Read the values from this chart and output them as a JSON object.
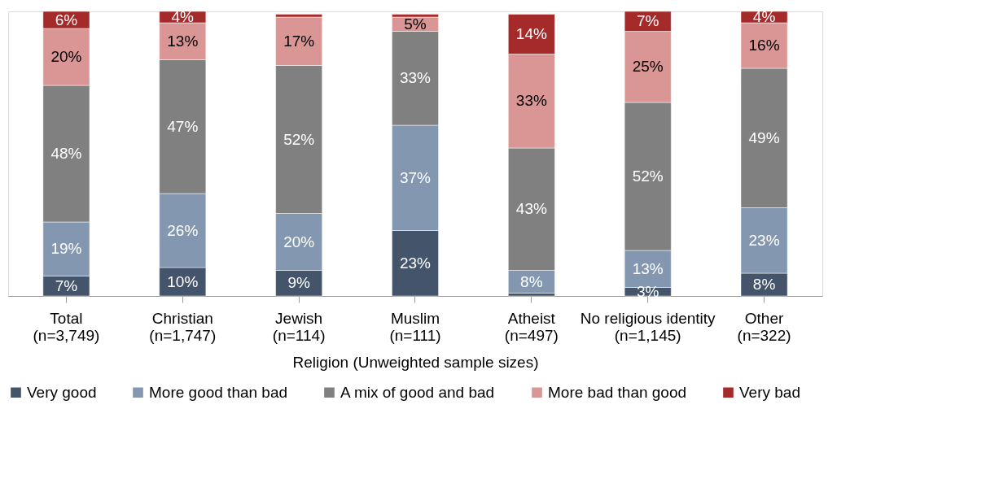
{
  "chart_data": {
    "type": "bar",
    "stacked": true,
    "xlabel": "Religion (Unweighted sample sizes)",
    "categories": [
      "Total (n=3,749)",
      "Christian (n=1,747)",
      "Jewish (n=114)",
      "Muslim (n=111)",
      "Atheist (n=497)",
      "No religious identity (n=1,145)",
      "Other (n=322)"
    ],
    "series": [
      {
        "name": "Very good",
        "color": "#44546a",
        "values": [
          7,
          10,
          9,
          23,
          1,
          3,
          8
        ],
        "value_labels": [
          "7%",
          "10%",
          "9%",
          "23%",
          null,
          "3%",
          "8%"
        ]
      },
      {
        "name": "More good than bad",
        "color": "#8497b0",
        "values": [
          19,
          26,
          20,
          37,
          8,
          13,
          23
        ],
        "value_labels": [
          "19%",
          "26%",
          "20%",
          "37%",
          "8%",
          "13%",
          "23%"
        ]
      },
      {
        "name": "A mix of good and bad",
        "color": "#808080",
        "values": [
          48,
          47,
          52,
          33,
          43,
          52,
          49
        ],
        "value_labels": [
          "48%",
          "47%",
          "52%",
          "33%",
          "43%",
          "52%",
          "49%"
        ]
      },
      {
        "name": "More bad than good",
        "color": "#da9694",
        "values": [
          20,
          13,
          17,
          5,
          33,
          25,
          16
        ],
        "value_labels": [
          "20%",
          "13%",
          "17%",
          "5%",
          "33%",
          "25%",
          "16%"
        ]
      },
      {
        "name": "Very bad",
        "color": "#a52a2a",
        "values": [
          6,
          4,
          1,
          1,
          14,
          7,
          4
        ],
        "value_labels": [
          "6%",
          "4%",
          null,
          null,
          "14%",
          "7%",
          "4%"
        ]
      }
    ],
    "legend": "bottom",
    "grid": false
  }
}
